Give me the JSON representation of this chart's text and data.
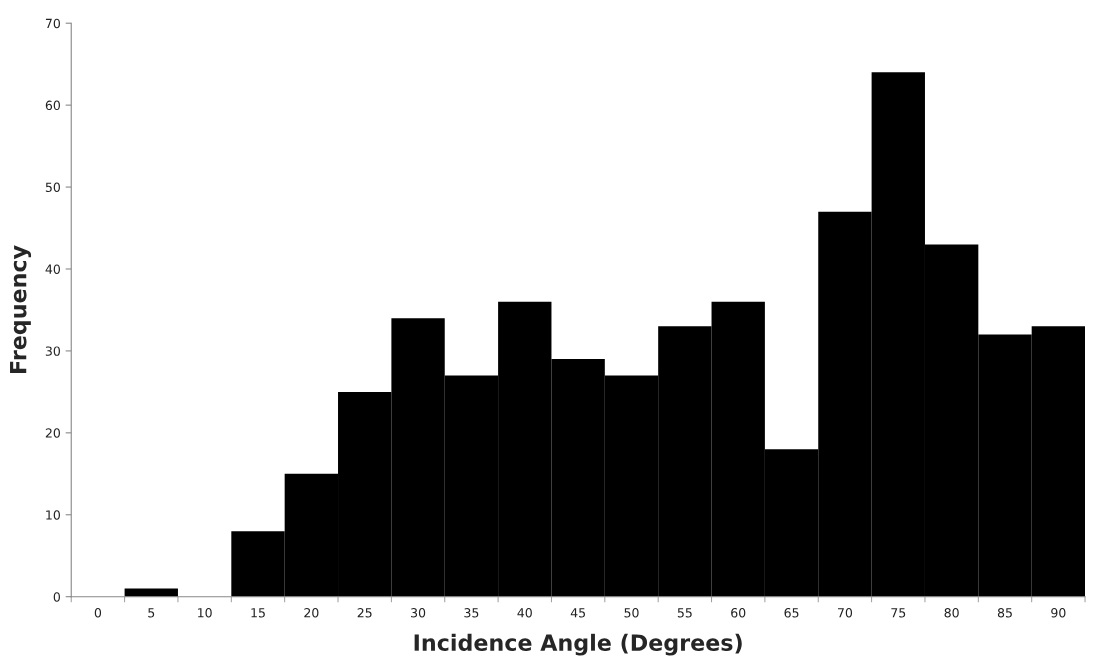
{
  "chart_data": {
    "type": "bar",
    "xlabel": "Incidence Angle (Degrees)",
    "ylabel": "Frequency",
    "categories": [
      "0",
      "5",
      "10",
      "15",
      "20",
      "25",
      "30",
      "35",
      "40",
      "45",
      "50",
      "55",
      "60",
      "65",
      "70",
      "75",
      "80",
      "85",
      "90"
    ],
    "values": [
      0,
      1,
      0,
      8,
      15,
      25,
      34,
      27,
      36,
      29,
      27,
      33,
      36,
      18,
      47,
      64,
      43,
      32,
      33
    ],
    "color": "#000000",
    "ylim": [
      0,
      70
    ],
    "yticks": [
      0,
      10,
      20,
      30,
      40,
      50,
      60,
      70
    ],
    "grid": false,
    "legend": false
  }
}
